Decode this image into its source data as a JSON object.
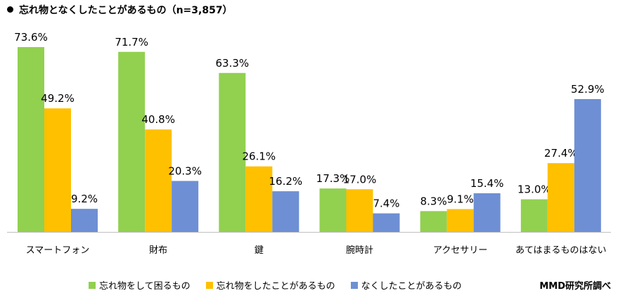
{
  "title": "忘れ物となくしたことがあるもの（n=3,857）",
  "credit": "MMD研究所調べ",
  "colors": {
    "series": [
      "#92D050",
      "#FFC000",
      "#6E8FD4"
    ],
    "axis": "#BFBFBF"
  },
  "chart_data": {
    "type": "bar",
    "title": "忘れ物となくしたことがあるもの（n=3,857）",
    "xlabel": "",
    "ylabel": "",
    "ylim": [
      0,
      80
    ],
    "grid": false,
    "legend": "bottom",
    "categories": [
      "スマートフォン",
      "財布",
      "鍵",
      "腕時計",
      "アクセサリー",
      "あてはまるものはない"
    ],
    "series": [
      {
        "name": "忘れ物をして困るもの",
        "values": [
          73.6,
          71.7,
          63.3,
          17.3,
          8.3,
          13.0
        ],
        "labels": [
          "73.6%",
          "71.7%",
          "63.3%",
          "17.3%",
          "8.3%",
          "13.0%"
        ]
      },
      {
        "name": "忘れ物をしたことがあるもの",
        "values": [
          49.2,
          40.8,
          26.1,
          17.0,
          9.1,
          27.4
        ],
        "labels": [
          "49.2%",
          "40.8%",
          "26.1%",
          "17.0%",
          "9.1%",
          "27.4%"
        ]
      },
      {
        "name": "なくしたことがあるもの",
        "values": [
          9.2,
          20.3,
          16.2,
          7.4,
          15.4,
          52.9
        ],
        "labels": [
          "9.2%",
          "20.3%",
          "16.2%",
          "7.4%",
          "15.4%",
          "52.9%"
        ]
      }
    ]
  }
}
